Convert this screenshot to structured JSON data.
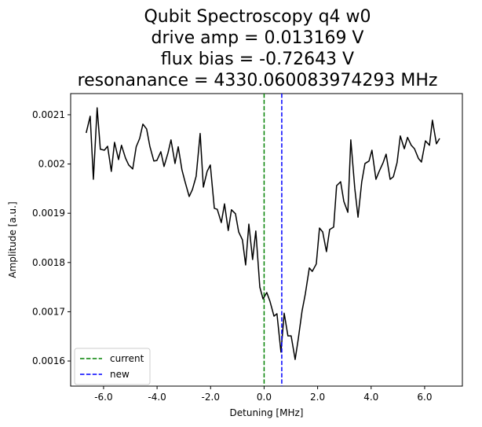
{
  "chart_data": {
    "type": "line",
    "title": [
      "Qubit Spectroscopy q4 w0",
      "drive amp = 0.013169 V",
      "flux bias = -0.72643 V",
      "resonanance = 4330.060083974293 MHz"
    ],
    "xlabel": "Detuning [MHz]",
    "ylabel": "Amplitude [a.u.]",
    "xlim": [
      -7.23,
      7.41
    ],
    "ylim": [
      0.001549,
      0.002143
    ],
    "xticks": [
      {
        "value": -6,
        "label": "-6.0"
      },
      {
        "value": -4,
        "label": "-4.0"
      },
      {
        "value": -2,
        "label": "-2.0"
      },
      {
        "value": 0,
        "label": "0.0"
      },
      {
        "value": 2,
        "label": "2.0"
      },
      {
        "value": 4,
        "label": "4.0"
      },
      {
        "value": 6,
        "label": "6.0"
      }
    ],
    "yticks": [
      0.0016,
      0.0017,
      0.0018,
      0.0019,
      0.002,
      0.0021
    ],
    "legend": "lower left",
    "x": [
      -6.65,
      -6.5,
      -6.38,
      -6.24,
      -6.12,
      -5.97,
      -5.85,
      -5.71,
      -5.59,
      -5.44,
      -5.33,
      -5.18,
      -5.06,
      -4.91,
      -4.78,
      -4.65,
      -4.53,
      -4.39,
      -4.27,
      -4.12,
      -4.01,
      -3.86,
      -3.74,
      -3.59,
      -3.48,
      -3.33,
      -3.21,
      -3.07,
      -2.95,
      -2.8,
      -2.68,
      -2.54,
      -2.39,
      -2.27,
      -2.13,
      -2.01,
      -1.86,
      -1.75,
      -1.6,
      -1.48,
      -1.34,
      -1.22,
      -1.07,
      -0.95,
      -0.81,
      -0.69,
      -0.57,
      -0.43,
      -0.31,
      -0.16,
      -0.04,
      0.1,
      0.22,
      0.37,
      0.48,
      0.63,
      0.75,
      0.89,
      1.01,
      1.16,
      1.28,
      1.42,
      1.54,
      1.69,
      1.8,
      1.95,
      2.07,
      2.19,
      2.33,
      2.45,
      2.6,
      2.71,
      2.86,
      2.98,
      3.13,
      3.24,
      3.39,
      3.51,
      3.65,
      3.77,
      3.92,
      4.03,
      4.18,
      4.3,
      4.45,
      4.56,
      4.71,
      4.83,
      4.97,
      5.09,
      5.24,
      5.36,
      5.5,
      5.62,
      5.77,
      5.88,
      6.03,
      6.18,
      6.29,
      6.44,
      6.56
    ],
    "series": [
      {
        "color": "#000000",
        "values": [
          0.002063,
          0.002097,
          0.001969,
          0.002114,
          0.00203,
          0.002028,
          0.002036,
          0.001985,
          0.002044,
          0.002009,
          0.002038,
          0.002012,
          0.001998,
          0.00199,
          0.002035,
          0.002052,
          0.002081,
          0.002071,
          0.002036,
          0.002006,
          0.002007,
          0.002025,
          0.001995,
          0.002023,
          0.002049,
          0.002001,
          0.002035,
          0.001988,
          0.001963,
          0.001934,
          0.001948,
          0.001975,
          0.002062,
          0.001953,
          0.001985,
          0.001998,
          0.00191,
          0.001908,
          0.001881,
          0.001919,
          0.001865,
          0.001907,
          0.001899,
          0.001862,
          0.001846,
          0.001795,
          0.001878,
          0.001806,
          0.001864,
          0.00175,
          0.001726,
          0.001739,
          0.001721,
          0.001691,
          0.001696,
          0.001618,
          0.001697,
          0.001651,
          0.001651,
          0.001603,
          0.001646,
          0.001702,
          0.001736,
          0.001789,
          0.001782,
          0.001797,
          0.00187,
          0.001862,
          0.001822,
          0.001867,
          0.001872,
          0.001956,
          0.001964,
          0.001924,
          0.001902,
          0.002049,
          0.00195,
          0.001892,
          0.001964,
          0.002001,
          0.002006,
          0.002028,
          0.001969,
          0.001985,
          0.002003,
          0.00202,
          0.001969,
          0.001974,
          0.002003,
          0.002057,
          0.002031,
          0.002054,
          0.002038,
          0.002031,
          0.002011,
          0.002004,
          0.002047,
          0.002038,
          0.002089,
          0.002041,
          0.002052
        ]
      }
    ],
    "vlines": [
      {
        "name": "current",
        "x": 0,
        "color": "#008000"
      },
      {
        "name": "new",
        "x": 0.66,
        "color": "#0000ff"
      }
    ]
  }
}
